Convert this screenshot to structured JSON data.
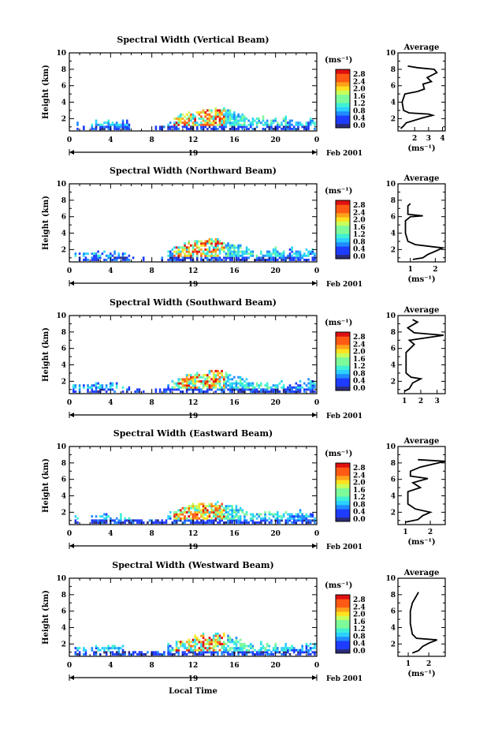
{
  "figure": {
    "x_axis_label": "Local Time",
    "date_label": "Feb 2001",
    "day_label": "19"
  },
  "chart_data": [
    {
      "type": "heatmap",
      "title": "Spectral Width (Vertical Beam)",
      "ylabel": "Height (km)",
      "xlabel": "Local Time",
      "xlim": [
        0,
        24
      ],
      "ylim": [
        0.5,
        10
      ],
      "x_ticks": [
        "0",
        "4",
        "8",
        "12",
        "16",
        "20",
        "0"
      ],
      "y_ticks": [
        "2",
        "4",
        "6",
        "8",
        "10"
      ],
      "colorbar": {
        "label": "(ms⁻¹)",
        "ticks": [
          "2.8",
          "2.4",
          "2.0",
          "1.6",
          "1.2",
          "0.8",
          "0.4",
          "0.0"
        ],
        "range": [
          0,
          2.8
        ]
      },
      "average_profile": {
        "title": "Average",
        "xlabel": "(ms⁻¹)",
        "x_ticks": [
          "2",
          "3",
          "4"
        ],
        "xlim": [
          0.8,
          4.2
        ],
        "y_ticks": [
          "2",
          "4",
          "6",
          "8",
          "10"
        ],
        "points": [
          [
            1.0,
            0.8
          ],
          [
            1.2,
            1.1
          ],
          [
            1.4,
            1.5
          ],
          [
            2.6,
            2.1
          ],
          [
            3.3,
            2.4
          ],
          [
            3.0,
            2.55
          ],
          [
            1.6,
            2.7
          ],
          [
            1.2,
            3.0
          ],
          [
            1.1,
            4.0
          ],
          [
            1.3,
            5.0
          ],
          [
            2.2,
            5.3
          ],
          [
            2.7,
            5.6
          ],
          [
            2.6,
            6.2
          ],
          [
            3.2,
            6.5
          ],
          [
            2.9,
            7.0
          ],
          [
            3.6,
            7.6
          ],
          [
            3.4,
            8.0
          ],
          [
            2.2,
            8.2
          ],
          [
            1.5,
            8.4
          ]
        ]
      }
    },
    {
      "type": "heatmap",
      "title": "Spectral Width (Northward Beam)",
      "ylabel": "Height (km)",
      "xlabel": "Local Time",
      "xlim": [
        0,
        24
      ],
      "ylim": [
        0.5,
        10
      ],
      "x_ticks": [
        "0",
        "4",
        "8",
        "12",
        "16",
        "20",
        "0"
      ],
      "y_ticks": [
        "2",
        "4",
        "6",
        "8",
        "10"
      ],
      "colorbar": {
        "label": "(ms⁻¹)",
        "ticks": [
          "2.8",
          "2.4",
          "2.0",
          "1.6",
          "1.2",
          "0.8",
          "0.4",
          "0.0"
        ],
        "range": [
          0,
          2.8
        ]
      },
      "average_profile": {
        "title": "Average",
        "xlabel": "(ms⁻¹)",
        "x_ticks": [
          "1",
          "2"
        ],
        "xlim": [
          0.5,
          2.4
        ],
        "y_ticks": [
          "2",
          "4",
          "6",
          "8",
          "10"
        ],
        "points": [
          [
            1.1,
            0.8
          ],
          [
            1.5,
            1.0
          ],
          [
            1.7,
            1.4
          ],
          [
            2.0,
            1.8
          ],
          [
            2.3,
            2.2
          ],
          [
            1.2,
            2.6
          ],
          [
            0.9,
            3.0
          ],
          [
            0.8,
            4.0
          ],
          [
            0.8,
            5.5
          ],
          [
            1.0,
            6.0
          ],
          [
            1.5,
            6.1
          ],
          [
            0.9,
            6.3
          ],
          [
            0.9,
            7.3
          ],
          [
            1.0,
            7.6
          ]
        ]
      }
    },
    {
      "type": "heatmap",
      "title": "Spectral Width (Southward Beam)",
      "ylabel": "Height (km)",
      "xlabel": "Local Time",
      "xlim": [
        0,
        24
      ],
      "ylim": [
        0.5,
        10
      ],
      "x_ticks": [
        "0",
        "4",
        "8",
        "12",
        "16",
        "20",
        "0"
      ],
      "y_ticks": [
        "2",
        "4",
        "6",
        "8",
        "10"
      ],
      "colorbar": {
        "label": "(ms⁻¹)",
        "ticks": [
          "2.8",
          "2.4",
          "2.0",
          "1.6",
          "1.2",
          "0.8",
          "0.4",
          "0.0"
        ],
        "range": [
          0,
          2.8
        ]
      },
      "average_profile": {
        "title": "Average",
        "xlabel": "",
        "x_ticks": [
          "1",
          "2",
          "3"
        ],
        "xlim": [
          0.6,
          3.5
        ],
        "y_ticks": [
          "2",
          "4",
          "6",
          "8",
          "10"
        ],
        "points": [
          [
            1.0,
            0.8
          ],
          [
            1.3,
            1.1
          ],
          [
            1.5,
            1.8
          ],
          [
            2.0,
            2.3
          ],
          [
            1.4,
            2.5
          ],
          [
            1.1,
            3.0
          ],
          [
            1.1,
            5.5
          ],
          [
            1.6,
            6.5
          ],
          [
            1.3,
            7.0
          ],
          [
            3.4,
            7.6
          ],
          [
            1.6,
            7.9
          ],
          [
            1.2,
            8.5
          ],
          [
            1.8,
            9.2
          ],
          [
            1.5,
            9.5
          ]
        ]
      }
    },
    {
      "type": "heatmap",
      "title": "Spectral Width (Eastward Beam)",
      "ylabel": "Height (km)",
      "xlabel": "Local Time",
      "xlim": [
        0,
        24
      ],
      "ylim": [
        0.5,
        10
      ],
      "x_ticks": [
        "0",
        "4",
        "8",
        "12",
        "16",
        "20",
        "0"
      ],
      "y_ticks": [
        "2",
        "4",
        "6",
        "8",
        "10"
      ],
      "colorbar": {
        "label": "(ms⁻¹)",
        "ticks": [
          "2.8",
          "2.4",
          "2.0",
          "1.6",
          "1.2",
          "0.8",
          "0.4",
          "0.0"
        ],
        "range": [
          0,
          2.8
        ]
      },
      "average_profile": {
        "title": "Average",
        "xlabel": "(ms⁻¹)",
        "x_ticks": [
          "1",
          "2"
        ],
        "xlim": [
          0.7,
          2.6
        ],
        "y_ticks": [
          "2",
          "4",
          "6",
          "8",
          "10"
        ],
        "points": [
          [
            1.0,
            0.8
          ],
          [
            1.5,
            1.1
          ],
          [
            1.7,
            1.6
          ],
          [
            2.0,
            2.0
          ],
          [
            1.4,
            2.4
          ],
          [
            1.1,
            3.0
          ],
          [
            1.1,
            4.5
          ],
          [
            1.6,
            5.0
          ],
          [
            1.3,
            5.6
          ],
          [
            1.9,
            6.1
          ],
          [
            1.2,
            6.4
          ],
          [
            1.2,
            7.0
          ],
          [
            1.6,
            7.5
          ],
          [
            2.6,
            8.2
          ],
          [
            1.5,
            8.4
          ]
        ]
      }
    },
    {
      "type": "heatmap",
      "title": "Spectral Width (Westward Beam)",
      "ylabel": "Height (km)",
      "xlabel": "Local Time",
      "xlim": [
        0,
        24
      ],
      "ylim": [
        0.5,
        10
      ],
      "x_ticks": [
        "0",
        "4",
        "8",
        "12",
        "16",
        "20",
        "0"
      ],
      "y_ticks": [
        "2",
        "4",
        "6",
        "8",
        "10"
      ],
      "colorbar": {
        "label": "(ms⁻¹)",
        "ticks": [
          "2.8",
          "2.4",
          "2.0",
          "1.6",
          "1.2",
          "0.8",
          "0.4",
          "0.0"
        ],
        "range": [
          0,
          2.8
        ]
      },
      "average_profile": {
        "title": "Average",
        "xlabel": "(ms⁻¹)",
        "x_ticks": [
          "1",
          "2"
        ],
        "xlim": [
          0.5,
          2.8
        ],
        "y_ticks": [
          "2",
          "4",
          "6",
          "8",
          "10"
        ],
        "points": [
          [
            1.2,
            0.9
          ],
          [
            1.5,
            1.2
          ],
          [
            1.7,
            1.7
          ],
          [
            2.0,
            2.1
          ],
          [
            2.4,
            2.5
          ],
          [
            1.4,
            2.7
          ],
          [
            1.2,
            3.2
          ],
          [
            1.1,
            4.5
          ],
          [
            1.1,
            6.0
          ],
          [
            1.2,
            7.0
          ],
          [
            1.5,
            8.3
          ]
        ]
      }
    }
  ]
}
